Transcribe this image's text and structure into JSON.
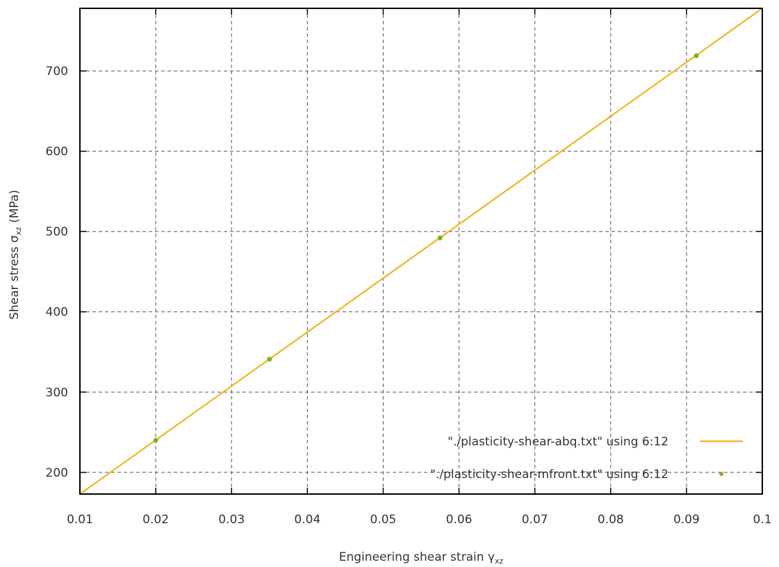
{
  "chart_data": {
    "type": "line",
    "xlabel": "Engineering shear strain",
    "xlabel_symbol": "γ",
    "xlabel_sub": "xz",
    "ylabel": "Shear stress",
    "ylabel_symbol": "σ",
    "ylabel_sub": "xz",
    "ylabel_unit": "(MPa)",
    "xlim": [
      0.01,
      0.1
    ],
    "ylim": [
      173,
      778
    ],
    "xticks": [
      0.01,
      0.02,
      0.03,
      0.04,
      0.05,
      0.06,
      0.07,
      0.08,
      0.09,
      0.1
    ],
    "xtick_labels": [
      "0.01",
      "0.02",
      "0.03",
      "0.04",
      "0.05",
      "0.06",
      "0.07",
      "0.08",
      "0.09",
      "0.1"
    ],
    "yticks": [
      200,
      300,
      400,
      500,
      600,
      700
    ],
    "ytick_labels": [
      "200",
      "300",
      "400",
      "500",
      "600",
      "700"
    ],
    "grid": true,
    "legend_position": "bottom-right",
    "series": [
      {
        "name": "\"./plasticity-shear-abq.txt\" using 6:12",
        "style": "line",
        "color": "#f5b21f",
        "x": [
          0.01,
          0.1
        ],
        "y": [
          173,
          778
        ]
      },
      {
        "name": "\"./plasticity-shear-mfront.txt\" using 6:12",
        "style": "points",
        "color": "#7ab51d",
        "x": [
          0.02,
          0.035,
          0.0575,
          0.0913
        ],
        "y": [
          240,
          341,
          492,
          719
        ]
      }
    ]
  }
}
